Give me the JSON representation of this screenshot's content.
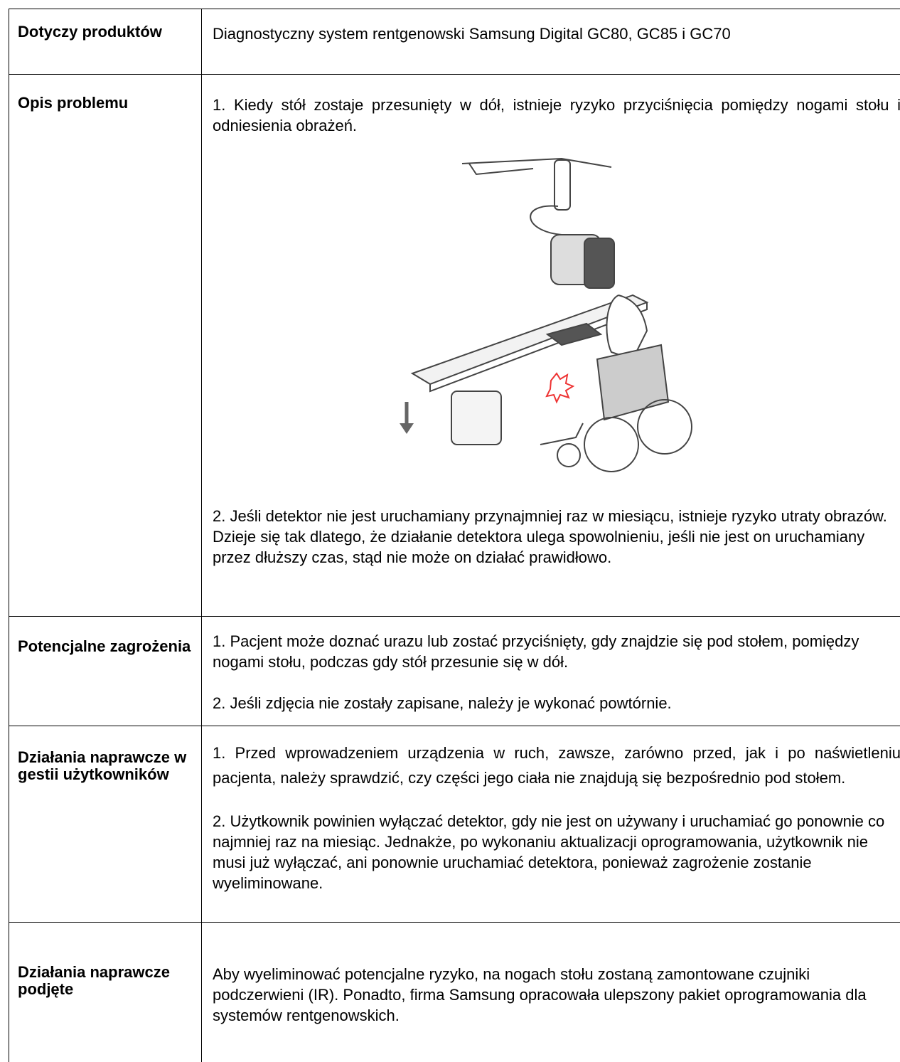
{
  "table": {
    "rows": [
      {
        "label": "Dotyczy produktów",
        "paragraphs": [
          "Diagnostyczny system rentgenowski Samsung Digital GC80, GC85 i GC70"
        ]
      },
      {
        "label": "Opis problemu",
        "paragraphs": [
          "1. Kiedy stół zostaje przesunięty w dół, istnieje ryzyko przyciśnięcia pomiędzy nogami stołu i odniesienia obrażeń.",
          "2. Jeśli detektor nie jest uruchamiany przynajmniej raz w miesiącu, istnieje ryzyko utraty obrazów. Dzieje się tak dlatego, że działanie detektora ulega spowolnieniu, jeśli nie jest on uruchamiany przez dłuższy czas, stąd nie może on działać prawidłowo."
        ]
      },
      {
        "label": "Potencjalne zagrożenia",
        "paragraphs": [
          "1. Pacjent może doznać urazu lub zostać przyciśnięty, gdy znajdzie się pod stołem, pomiędzy nogami stołu, podczas gdy stół przesunie się w dół.",
          "2. Jeśli zdjęcia nie zostały zapisane, należy je wykonać powtórnie."
        ]
      },
      {
        "label": "Działania naprawcze w gestii użytkowników",
        "paragraphs": [
          "1. Przed wprowadzeniem urządzenia w ruch, zawsze, zarówno przed, jak i po naświetleniu pacjenta, należy sprawdzić, czy części jego ciała nie znajdują się bezpośrednio pod stołem.",
          "2. Użytkownik powinien wyłączać detektor, gdy nie jest on używany i uruchamiać go ponownie co najmniej raz na miesiąc. Jednakże, po wykonaniu aktualizacji oprogramowania, użytkownik nie musi już wyłączać, ani ponownie uruchamiać detektora, ponieważ zagrożenie zostanie wyeliminowane."
        ]
      },
      {
        "label": "Działania naprawcze podjęte",
        "paragraphs": [
          "Aby wyeliminować potencjalne ryzyko, na nogach stołu zostaną zamontowane czujniki podczerwieni (IR). Ponadto, firma Samsung opracowała ulepszony pakiet oprogramowania dla systemów rentgenowskich."
        ]
      }
    ]
  }
}
